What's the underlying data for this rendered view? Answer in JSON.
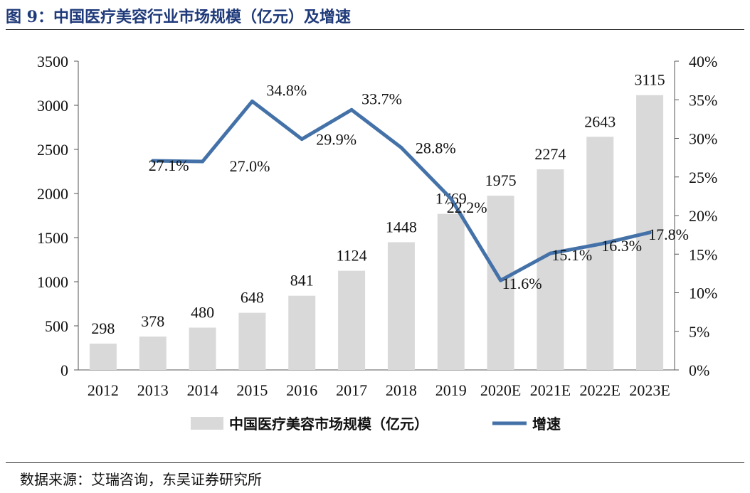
{
  "header": {
    "title": "图 9：中国医疗美容行业市场规模（亿元）及增速"
  },
  "footer": {
    "source": "数据来源：艾瑞咨询，东吴证券研究所"
  },
  "colors": {
    "bar": "#d9d9d9",
    "line": "#4472a8",
    "title": "#1f3a7a"
  },
  "chart_data": {
    "type": "bar",
    "categories": [
      "2012",
      "2013",
      "2014",
      "2015",
      "2016",
      "2017",
      "2018",
      "2019",
      "2020E",
      "2021E",
      "2022E",
      "2023E"
    ],
    "series": [
      {
        "name": "中国医疗美容市场规模（亿元）",
        "type": "bar",
        "axis": "left",
        "values": [
          298,
          378,
          480,
          648,
          841,
          1124,
          1448,
          1769,
          1975,
          2274,
          2643,
          3115
        ],
        "labels": [
          "298",
          "378",
          "480",
          "648",
          "841",
          "1124",
          "1448",
          "1769",
          "1975",
          "2274",
          "2643",
          "3115"
        ]
      },
      {
        "name": "增速",
        "type": "line",
        "axis": "right",
        "values": [
          null,
          27.1,
          27.0,
          34.8,
          29.9,
          33.7,
          28.8,
          22.2,
          11.6,
          15.1,
          16.3,
          17.8
        ],
        "labels": [
          null,
          "27.1%",
          "27.0%",
          "34.8%",
          "29.9%",
          "33.7%",
          "28.8%",
          "22.2%",
          "11.6%",
          "15.1%",
          "16.3%",
          "17.8%"
        ]
      }
    ],
    "y_left": {
      "ticks": [
        "0",
        "500",
        "1000",
        "1500",
        "2000",
        "2500",
        "3000",
        "3500"
      ],
      "ylim": [
        0,
        3500
      ]
    },
    "y_right": {
      "ticks": [
        "0%",
        "5%",
        "10%",
        "15%",
        "20%",
        "25%",
        "30%",
        "35%",
        "40%"
      ],
      "ylim": [
        0,
        40
      ]
    },
    "grid": false,
    "legend_position": "bottom"
  }
}
